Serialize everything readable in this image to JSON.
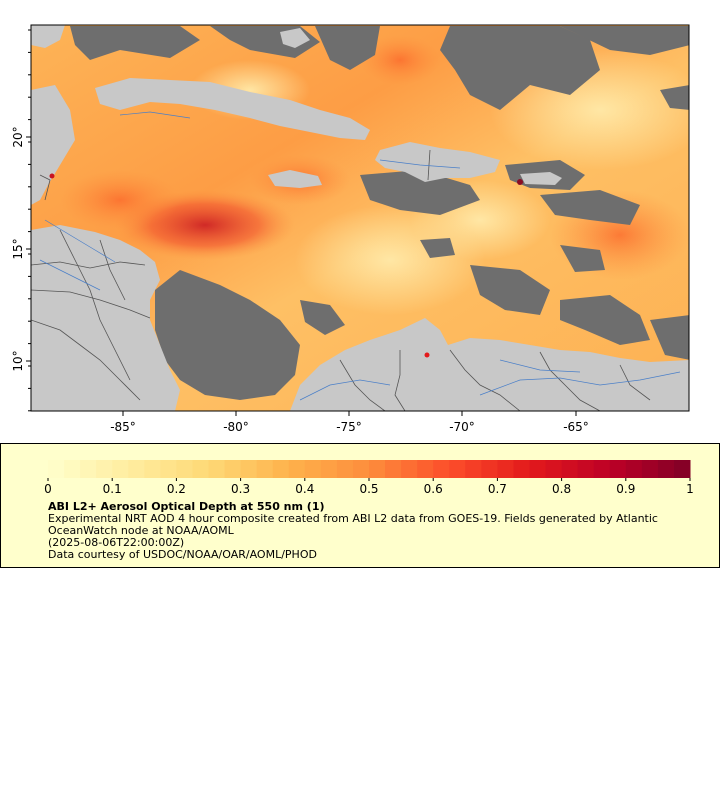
{
  "map": {
    "x_ticks": [
      "-85°",
      "-80°",
      "-75°",
      "-70°",
      "-65°"
    ],
    "y_ticks": [
      "20°",
      "15°",
      "10°"
    ],
    "colors": {
      "land": "#c8c8c8",
      "no_data": "#6e6e6e",
      "borders": "#555555",
      "rivers": "#4a7fc8",
      "frame": "#000000"
    }
  },
  "legend": {
    "title": "ABI L2+ Aerosol Optical Depth at 550 nm (1)",
    "line1": "Experimental NRT AOD 4 hour composite created from ABI L2 data from GOES-19. Fields generated by Atlantic",
    "line2": "OceanWatch node at NOAA/AOML",
    "line3": "(2025-08-06T22:00:00Z)",
    "line4": "Data courtesy of USDOC/NOAA/OAR/AOML/PHOD",
    "colorbar_ticks": [
      "0",
      "0.1",
      "0.2",
      "0.3",
      "0.4",
      "0.5",
      "0.6",
      "0.7",
      "0.8",
      "0.9",
      "1"
    ],
    "colorbar_range": [
      0,
      1
    ],
    "colormap_stops": [
      "#ffffcc",
      "#ffeda0",
      "#fed976",
      "#feb24c",
      "#fd8d3c",
      "#fc4e2a",
      "#e31a1c",
      "#bd0026",
      "#800026"
    ],
    "background": "#ffffcc"
  }
}
